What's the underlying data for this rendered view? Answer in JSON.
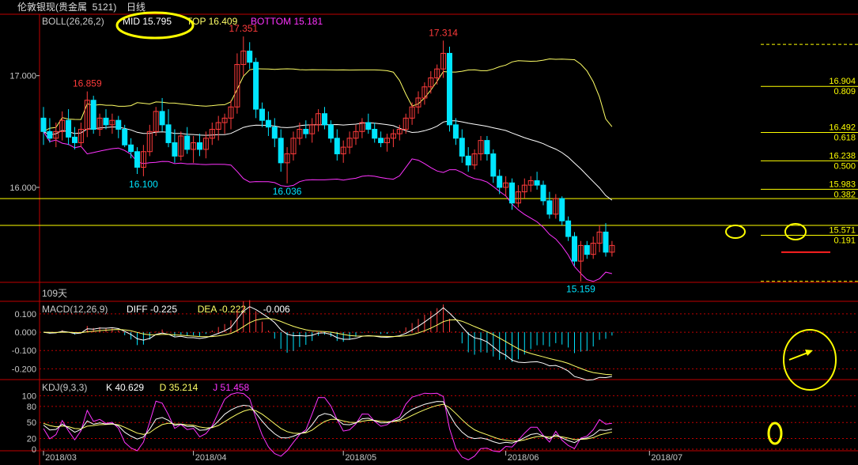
{
  "window": {
    "instrument": "伦敦银现(贵金属  5121)",
    "period": "日线"
  },
  "colors": {
    "bg": "#000000",
    "up": "#ff3b3b",
    "down": "#00e5ff",
    "boll_mid": "#ffffff",
    "boll_upper": "#ffff66",
    "boll_lower": "#ff33ff",
    "fib": "#ffff00",
    "grid_red": "#c00000",
    "axis_text": "#c8c8c8",
    "annotation": "#ffff00"
  },
  "chart_data": [
    {
      "type": "candlestick",
      "title": "BOLL(26,26,2)",
      "indicators": [
        {
          "name": "MID",
          "value": "15.795",
          "color": "#ffffff"
        },
        {
          "name": "TOP",
          "value": "16.409",
          "color": "#ffff66"
        },
        {
          "name": "BOTTOM",
          "value": "15.181",
          "color": "#ff33ff"
        }
      ],
      "y_ticks": [
        "17.000",
        "16.000"
      ],
      "ylim": [
        15.15,
        17.55
      ],
      "x_ticks": [
        "2018/03",
        "2018/04",
        "2018/05",
        "2018/06",
        "2018/07"
      ],
      "bars_label": "109天",
      "price_annotations": [
        {
          "label": "16.859",
          "color": "up"
        },
        {
          "label": "17.351",
          "color": "up"
        },
        {
          "label": "17.314",
          "color": "up"
        },
        {
          "label": "16.100",
          "color": "down"
        },
        {
          "label": "16.036",
          "color": "down"
        },
        {
          "label": "15.159",
          "color": "down"
        }
      ],
      "fibonacci": [
        {
          "price": "16.904",
          "ratio": "0.809"
        },
        {
          "price": "16.492",
          "ratio": "0.618"
        },
        {
          "price": "16.238",
          "ratio": "0.500"
        },
        {
          "price": "15.983",
          "ratio": "0.382"
        },
        {
          "price": "15.571",
          "ratio": "0.191"
        }
      ],
      "candles": [
        [
          16.62,
          16.72,
          16.38,
          16.5
        ],
        [
          16.5,
          16.62,
          16.4,
          16.44
        ],
        [
          16.44,
          16.58,
          16.36,
          16.5
        ],
        [
          16.5,
          16.68,
          16.42,
          16.6
        ],
        [
          16.6,
          16.7,
          16.38,
          16.45
        ],
        [
          16.45,
          16.54,
          16.34,
          16.4
        ],
        [
          16.4,
          16.58,
          16.36,
          16.52
        ],
        [
          16.52,
          16.859,
          16.45,
          16.78
        ],
        [
          16.78,
          16.82,
          16.48,
          16.52
        ],
        [
          16.52,
          16.66,
          16.46,
          16.62
        ],
        [
          16.62,
          16.7,
          16.52,
          16.56
        ],
        [
          16.56,
          16.66,
          16.48,
          16.6
        ],
        [
          16.6,
          16.64,
          16.44,
          16.52
        ],
        [
          16.52,
          16.56,
          16.36,
          16.38
        ],
        [
          16.38,
          16.44,
          16.26,
          16.32
        ],
        [
          16.32,
          16.36,
          16.12,
          16.18
        ],
        [
          16.18,
          16.38,
          16.1,
          16.32
        ],
        [
          16.32,
          16.56,
          16.28,
          16.5
        ],
        [
          16.5,
          16.72,
          16.46,
          16.68
        ],
        [
          16.68,
          16.8,
          16.5,
          16.56
        ],
        [
          16.56,
          16.7,
          16.36,
          16.4
        ],
        [
          16.4,
          16.52,
          16.22,
          16.28
        ],
        [
          16.28,
          16.5,
          16.24,
          16.46
        ],
        [
          16.46,
          16.54,
          16.3,
          16.34
        ],
        [
          16.34,
          16.46,
          16.22,
          16.4
        ],
        [
          16.4,
          16.48,
          16.28,
          16.34
        ],
        [
          16.34,
          16.5,
          16.26,
          16.44
        ],
        [
          16.44,
          16.58,
          16.38,
          16.52
        ],
        [
          16.52,
          16.64,
          16.42,
          16.58
        ],
        [
          16.58,
          16.66,
          16.48,
          16.62
        ],
        [
          16.62,
          16.78,
          16.52,
          16.72
        ],
        [
          16.72,
          17.2,
          16.66,
          17.1
        ],
        [
          17.1,
          17.351,
          17.0,
          17.22
        ],
        [
          17.22,
          17.3,
          17.06,
          17.12
        ],
        [
          17.12,
          17.16,
          16.62,
          16.7
        ],
        [
          16.7,
          16.76,
          16.54,
          16.6
        ],
        [
          16.6,
          16.68,
          16.46,
          16.54
        ],
        [
          16.54,
          16.62,
          16.36,
          16.44
        ],
        [
          16.44,
          16.52,
          16.14,
          16.22
        ],
        [
          16.22,
          16.36,
          16.036,
          16.3
        ],
        [
          16.3,
          16.5,
          16.24,
          16.44
        ],
        [
          16.44,
          16.58,
          16.38,
          16.52
        ],
        [
          16.52,
          16.6,
          16.44,
          16.48
        ],
        [
          16.48,
          16.62,
          16.4,
          16.56
        ],
        [
          16.56,
          16.7,
          16.5,
          16.66
        ],
        [
          16.66,
          16.72,
          16.52,
          16.56
        ],
        [
          16.56,
          16.6,
          16.4,
          16.44
        ],
        [
          16.44,
          16.52,
          16.24,
          16.3
        ],
        [
          16.3,
          16.42,
          16.22,
          16.36
        ],
        [
          16.36,
          16.5,
          16.3,
          16.44
        ],
        [
          16.44,
          16.56,
          16.38,
          16.5
        ],
        [
          16.5,
          16.62,
          16.44,
          16.58
        ],
        [
          16.58,
          16.66,
          16.48,
          16.52
        ],
        [
          16.52,
          16.58,
          16.4,
          16.44
        ],
        [
          16.44,
          16.5,
          16.36,
          16.4
        ],
        [
          16.4,
          16.48,
          16.32,
          16.44
        ],
        [
          16.44,
          16.52,
          16.36,
          16.48
        ],
        [
          16.48,
          16.56,
          16.42,
          16.52
        ],
        [
          16.52,
          16.66,
          16.48,
          16.62
        ],
        [
          16.62,
          16.76,
          16.56,
          16.72
        ],
        [
          16.72,
          16.86,
          16.66,
          16.8
        ],
        [
          16.8,
          16.94,
          16.74,
          16.9
        ],
        [
          16.9,
          17.04,
          16.84,
          16.98
        ],
        [
          16.98,
          17.1,
          16.92,
          17.06
        ],
        [
          17.06,
          17.314,
          16.98,
          17.2
        ],
        [
          17.2,
          17.26,
          16.5,
          16.56
        ],
        [
          16.56,
          16.62,
          16.38,
          16.44
        ],
        [
          16.44,
          16.52,
          16.22,
          16.28
        ],
        [
          16.28,
          16.36,
          16.14,
          16.2
        ],
        [
          16.2,
          16.34,
          16.16,
          16.3
        ],
        [
          16.3,
          16.46,
          16.24,
          16.42
        ],
        [
          16.42,
          16.46,
          16.24,
          16.3
        ],
        [
          16.3,
          16.34,
          16.04,
          16.1
        ],
        [
          16.1,
          16.16,
          15.94,
          16.0
        ],
        [
          16.0,
          16.1,
          15.92,
          16.04
        ],
        [
          16.04,
          16.08,
          15.8,
          15.86
        ],
        [
          15.86,
          16.02,
          15.82,
          15.96
        ],
        [
          15.96,
          16.08,
          15.9,
          16.02
        ],
        [
          16.02,
          16.1,
          15.96,
          16.06
        ],
        [
          16.06,
          16.14,
          15.98,
          16.02
        ],
        [
          16.02,
          16.06,
          15.84,
          15.88
        ],
        [
          15.88,
          15.96,
          15.72,
          15.76
        ],
        [
          15.76,
          15.94,
          15.72,
          15.9
        ],
        [
          15.9,
          15.92,
          15.66,
          15.7
        ],
        [
          15.7,
          15.74,
          15.52,
          15.56
        ],
        [
          15.56,
          15.6,
          15.3,
          15.34
        ],
        [
          15.34,
          15.52,
          15.159,
          15.48
        ],
        [
          15.48,
          15.52,
          15.36,
          15.4
        ],
        [
          15.4,
          15.56,
          15.36,
          15.5
        ],
        [
          15.5,
          15.66,
          15.42,
          15.6
        ],
        [
          15.6,
          15.68,
          15.38,
          15.42
        ],
        [
          15.42,
          15.52,
          15.38,
          15.48
        ]
      ]
    },
    {
      "type": "bar",
      "title": "MACD(12,26,9)",
      "indicators": [
        {
          "name": "DIFF",
          "value": "-0.225",
          "color": "#ffffff"
        },
        {
          "name": "DEA",
          "value": "-0.222",
          "color": "#ffff66"
        },
        {
          "name": "MACD",
          "value": "-0.006",
          "color": "#ffffff"
        }
      ],
      "y_ticks": [
        "0.100",
        "0.000",
        "-0.100",
        "-0.200"
      ],
      "ylim": [
        -0.25,
        0.16
      ]
    },
    {
      "type": "line",
      "title": "KDJ(9,3,3)",
      "indicators": [
        {
          "name": "K",
          "value": "40.629",
          "color": "#ffffff"
        },
        {
          "name": "D",
          "value": "35.214",
          "color": "#ffff66"
        },
        {
          "name": "J",
          "value": "51.458",
          "color": "#ff33ff"
        }
      ],
      "y_ticks": [
        "100",
        "80",
        "50",
        "20",
        "0"
      ],
      "ylim": [
        0,
        105
      ]
    }
  ]
}
